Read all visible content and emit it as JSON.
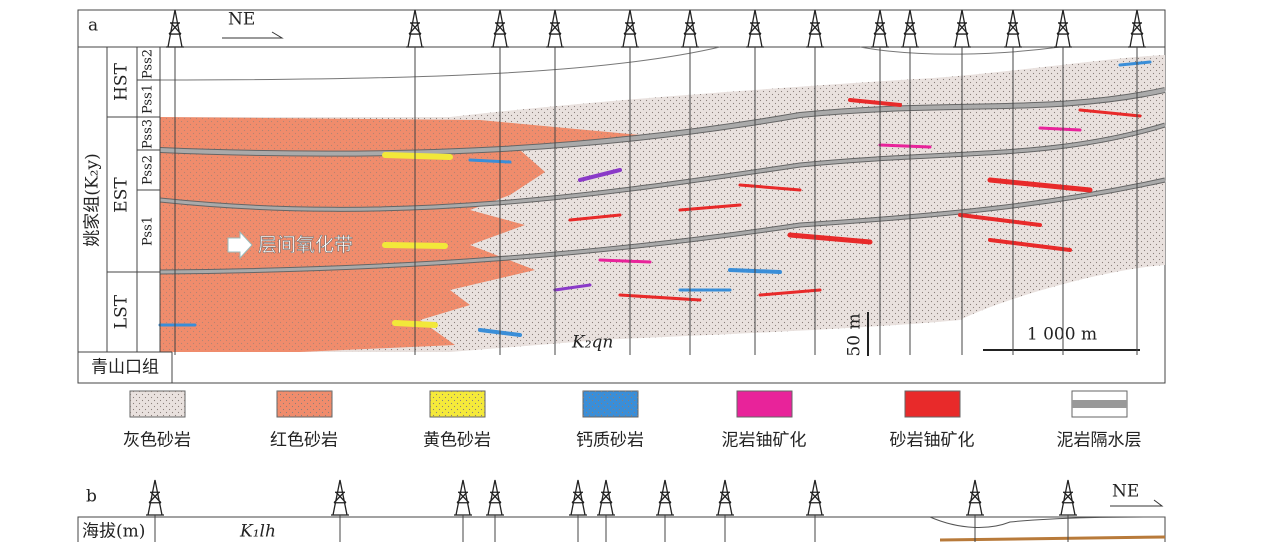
{
  "panel_a": {
    "label": "a",
    "direction": "NE",
    "formation": "姚家组(K₂y)",
    "system_tracts": [
      "HST",
      "EST",
      "LST"
    ],
    "sequences": [
      "Pss2",
      "Pss1",
      "Pss3",
      "Pss2",
      "Pss1"
    ],
    "annotation": "层间氧化带",
    "unit_label": "K₂qn",
    "vertical_scale": "50 m",
    "horizontal_scale": "1 000 m",
    "base_formation": "青山口组"
  },
  "legend": [
    "灰色砂岩",
    "红色砂岩",
    "黄色砂岩",
    "钙质砂岩",
    "泥岩铀矿化",
    "砂岩铀矿化",
    "泥岩隔水层"
  ],
  "panel_b": {
    "label": "b",
    "direction": "NE",
    "axis_label": "海拔(m)",
    "unit_label": "K₁lh"
  }
}
